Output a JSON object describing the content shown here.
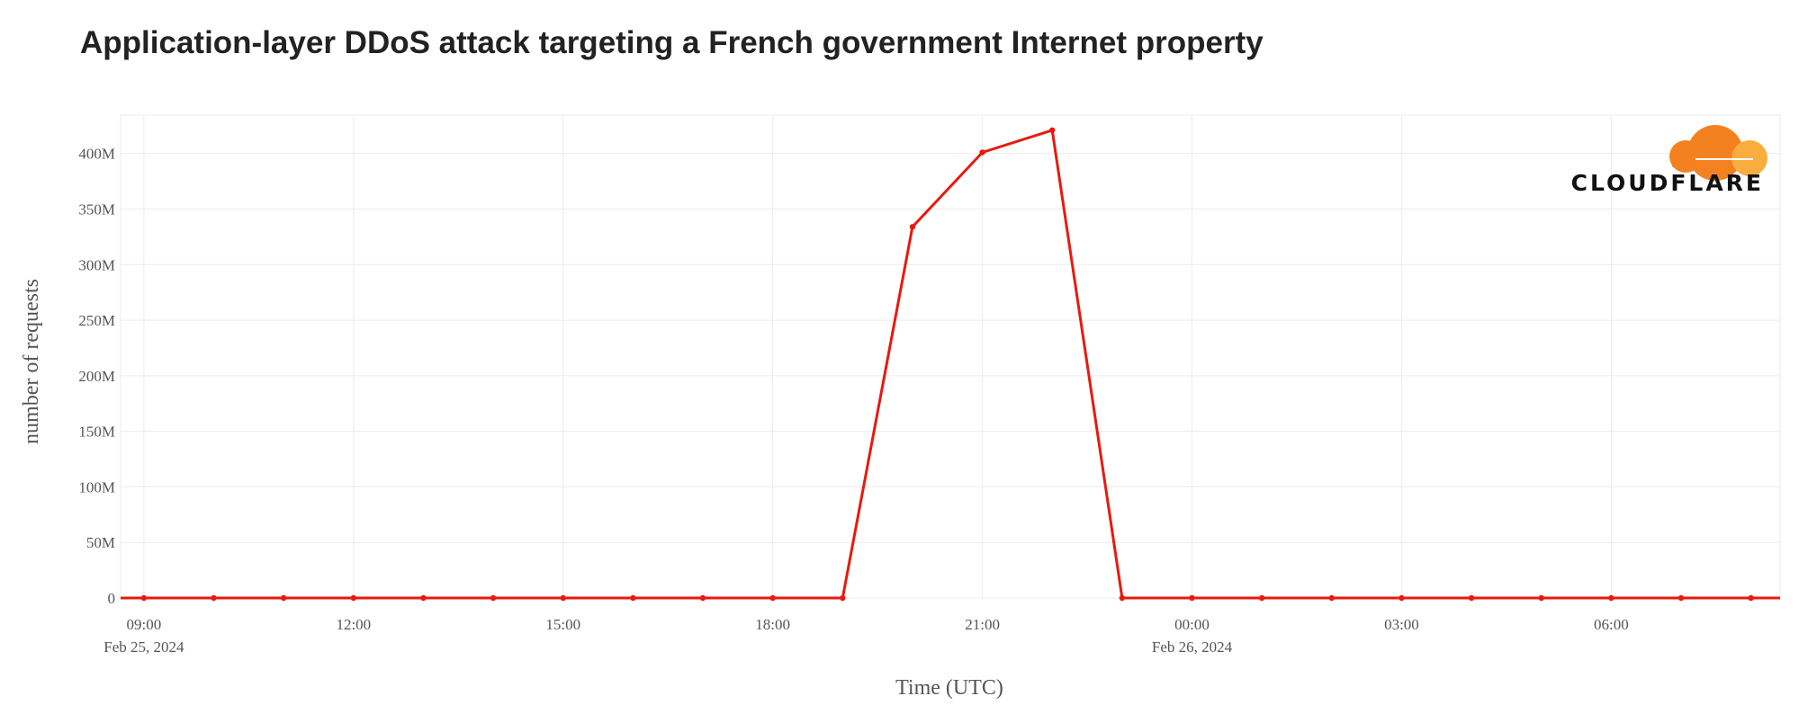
{
  "chart_data": {
    "type": "line",
    "title": "Application-layer DDoS attack targeting a French government Internet property",
    "xlabel": "Time (UTC)",
    "ylabel": "number of requests",
    "ylim": [
      0,
      420000000
    ],
    "xlim": [
      "2024-02-25 08:40",
      "2024-02-26 08:25"
    ],
    "grid": true,
    "legend": "none",
    "line_color": "#e8190e",
    "y_ticks": [
      {
        "value": 0,
        "label": "0"
      },
      {
        "value": 50000000,
        "label": "50M"
      },
      {
        "value": 100000000,
        "label": "100M"
      },
      {
        "value": 150000000,
        "label": "150M"
      },
      {
        "value": 200000000,
        "label": "200M"
      },
      {
        "value": 250000000,
        "label": "250M"
      },
      {
        "value": 300000000,
        "label": "300M"
      },
      {
        "value": 350000000,
        "label": "350M"
      },
      {
        "value": 400000000,
        "label": "400M"
      }
    ],
    "x_ticks": [
      {
        "time": "2024-02-25 09:00",
        "label": "09:00",
        "sublabel": "Feb 25, 2024"
      },
      {
        "time": "2024-02-25 12:00",
        "label": "12:00",
        "sublabel": ""
      },
      {
        "time": "2024-02-25 15:00",
        "label": "15:00",
        "sublabel": ""
      },
      {
        "time": "2024-02-25 18:00",
        "label": "18:00",
        "sublabel": ""
      },
      {
        "time": "2024-02-25 21:00",
        "label": "21:00",
        "sublabel": ""
      },
      {
        "time": "2024-02-26 00:00",
        "label": "00:00",
        "sublabel": "Feb 26, 2024"
      },
      {
        "time": "2024-02-26 03:00",
        "label": "03:00",
        "sublabel": ""
      },
      {
        "time": "2024-02-26 06:00",
        "label": "06:00",
        "sublabel": ""
      }
    ],
    "series": [
      {
        "x": [
          "2024-02-25 08:40",
          "2024-02-25 09:00",
          "2024-02-25 10:00",
          "2024-02-25 11:00",
          "2024-02-25 12:00",
          "2024-02-25 13:00",
          "2024-02-25 14:00",
          "2024-02-25 15:00",
          "2024-02-25 16:00",
          "2024-02-25 17:00",
          "2024-02-25 18:00",
          "2024-02-25 19:00",
          "2024-02-25 20:00",
          "2024-02-25 21:00",
          "2024-02-25 22:00",
          "2024-02-25 23:00",
          "2024-02-26 00:00",
          "2024-02-26 01:00",
          "2024-02-26 02:00",
          "2024-02-26 03:00",
          "2024-02-26 04:00",
          "2024-02-26 05:00",
          "2024-02-26 06:00",
          "2024-02-26 07:00",
          "2024-02-26 08:00",
          "2024-02-26 08:25"
        ],
        "values": [
          0,
          0,
          0,
          0,
          0,
          0,
          0,
          0,
          0,
          0,
          0,
          0,
          334000000,
          401000000,
          421000000,
          0,
          0,
          0,
          0,
          0,
          0,
          0,
          0,
          0,
          0,
          0
        ]
      }
    ]
  },
  "brand": {
    "name": "CLOUDFLARE",
    "logo_colors": [
      "#f48120",
      "#faad3f"
    ]
  }
}
